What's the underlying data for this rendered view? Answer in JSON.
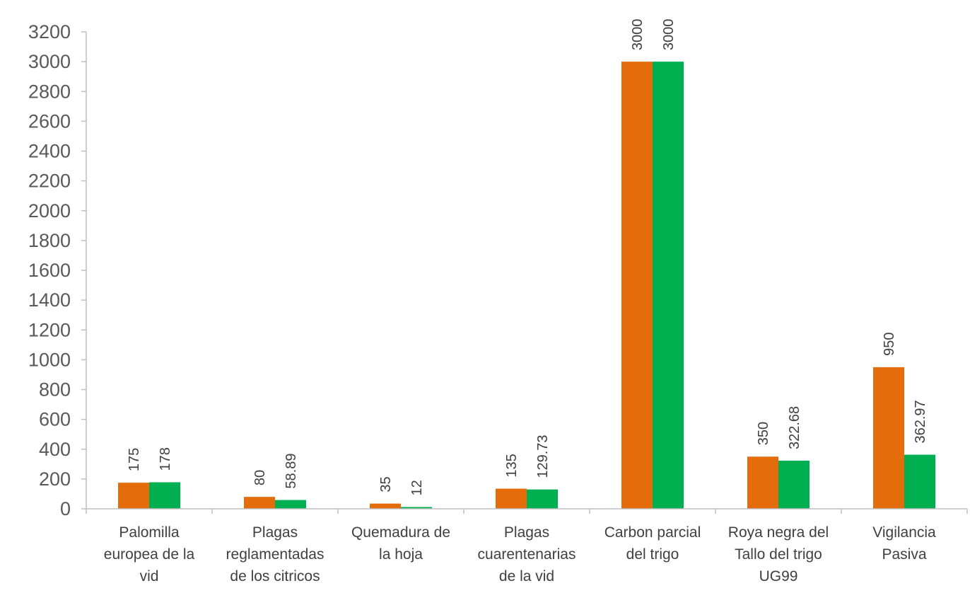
{
  "chart_data": {
    "type": "bar",
    "categories": [
      [
        "Palomilla",
        "europea de la",
        "vid"
      ],
      [
        "Plagas",
        "reglamentadas",
        "de los citricos"
      ],
      [
        "Quemadura de",
        "la hoja"
      ],
      [
        "Plagas",
        "cuarentenarias",
        "de la vid"
      ],
      [
        "Carbon parcial",
        "del trigo"
      ],
      [
        "Roya negra del",
        "Tallo del trigo",
        "UG99"
      ],
      [
        "Vigilancia",
        "Pasiva"
      ]
    ],
    "series": [
      {
        "values": [
          175,
          80,
          35,
          135,
          3000,
          350,
          950
        ],
        "labels": [
          "175",
          "80",
          "35",
          "135",
          "3000",
          "350",
          "950"
        ],
        "color": "#E46C0A"
      },
      {
        "values": [
          178,
          58.89,
          12,
          129.73,
          3000,
          322.68,
          362.97
        ],
        "labels": [
          "178",
          "58.89",
          "12",
          "129.73",
          "3000",
          "322.68",
          "362.97"
        ],
        "color": "#00B050"
      }
    ],
    "ylim": [
      0,
      3200
    ],
    "ytick_step": 200,
    "yticks": [
      "0",
      "200",
      "400",
      "600",
      "800",
      "1000",
      "1200",
      "1400",
      "1600",
      "1800",
      "2000",
      "2200",
      "2400",
      "2600",
      "2800",
      "3000",
      "3200"
    ],
    "title": "",
    "xlabel": "",
    "ylabel": "",
    "grid": false,
    "legend": false,
    "data_labels": "rotated-vertical"
  }
}
